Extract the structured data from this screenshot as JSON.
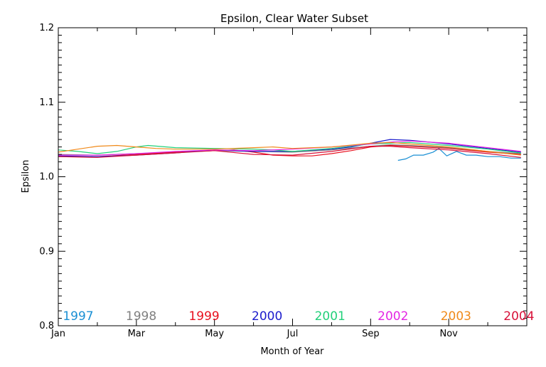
{
  "chart_data": {
    "type": "line",
    "title": "Epsilon, Clear Water Subset",
    "xlabel": "Month of Year",
    "ylabel": "Epsilon",
    "xlim": [
      1,
      13
    ],
    "ylim": [
      0.8,
      1.2
    ],
    "x_ticks": [
      {
        "value": 1,
        "label": "Jan"
      },
      {
        "value": 3,
        "label": "Mar"
      },
      {
        "value": 5,
        "label": "May"
      },
      {
        "value": 7,
        "label": "Jul"
      },
      {
        "value": 9,
        "label": "Sep"
      },
      {
        "value": 11,
        "label": "Nov"
      }
    ],
    "y_ticks": [
      {
        "value": 0.8,
        "label": "0.8"
      },
      {
        "value": 0.9,
        "label": "0.9"
      },
      {
        "value": 1.0,
        "label": "1.0"
      },
      {
        "value": 1.1,
        "label": "1.1"
      },
      {
        "value": 1.2,
        "label": "1.2"
      }
    ],
    "legend_placement": "bottom, inside plot",
    "series": [
      {
        "name": "1997",
        "color": "#1a8fd4",
        "x": [
          9.7,
          9.9,
          10.1,
          10.35,
          10.6,
          10.75,
          10.95,
          11.2,
          11.45,
          11.7,
          12.0,
          12.3,
          12.6,
          12.85
        ],
        "y": [
          1.022,
          1.024,
          1.029,
          1.029,
          1.033,
          1.038,
          1.028,
          1.034,
          1.029,
          1.029,
          1.027,
          1.027,
          1.025,
          1.025
        ]
      },
      {
        "name": "1998",
        "color": "#808080",
        "x": [
          1.0,
          2.0,
          3.0,
          4.0,
          5.0,
          6.0,
          7.0,
          8.0,
          9.0,
          9.5,
          10.0,
          11.0,
          12.0,
          12.85
        ],
        "y": [
          1.03,
          1.029,
          1.031,
          1.033,
          1.035,
          1.034,
          1.033,
          1.036,
          1.041,
          1.043,
          1.042,
          1.039,
          1.034,
          1.031
        ]
      },
      {
        "name": "1999",
        "color": "#e8101e",
        "x": [
          1.0,
          2.0,
          3.0,
          4.0,
          5.0,
          5.5,
          6.0,
          6.5,
          7.0,
          7.5,
          8.0,
          8.5,
          9.0,
          9.5,
          10.0,
          11.0,
          12.0,
          12.85
        ],
        "y": [
          1.027,
          1.027,
          1.03,
          1.033,
          1.035,
          1.036,
          1.033,
          1.029,
          1.028,
          1.028,
          1.031,
          1.035,
          1.04,
          1.042,
          1.041,
          1.038,
          1.033,
          1.03
        ]
      },
      {
        "name": "2000",
        "color": "#1c1ccc",
        "x": [
          1.0,
          2.0,
          3.0,
          4.0,
          5.0,
          6.0,
          7.0,
          8.0,
          8.5,
          9.0,
          9.5,
          10.0,
          11.0,
          12.0,
          12.85
        ],
        "y": [
          1.028,
          1.027,
          1.029,
          1.032,
          1.036,
          1.034,
          1.034,
          1.037,
          1.04,
          1.045,
          1.05,
          1.049,
          1.044,
          1.038,
          1.033
        ]
      },
      {
        "name": "2001",
        "color": "#22d07a",
        "x": [
          1.0,
          1.5,
          2.0,
          2.5,
          3.0,
          3.3,
          4.0,
          5.0,
          6.0,
          6.5,
          7.0,
          8.0,
          9.0,
          10.0,
          11.0,
          12.0,
          12.85
        ],
        "y": [
          1.036,
          1.034,
          1.031,
          1.034,
          1.04,
          1.042,
          1.039,
          1.038,
          1.037,
          1.036,
          1.034,
          1.038,
          1.044,
          1.046,
          1.042,
          1.037,
          1.032
        ]
      },
      {
        "name": "2002",
        "color": "#e426e4",
        "x": [
          1.0,
          2.0,
          3.0,
          4.0,
          5.0,
          6.0,
          7.0,
          8.0,
          9.0,
          9.6,
          10.0,
          11.0,
          12.0,
          12.85
        ],
        "y": [
          1.029,
          1.029,
          1.031,
          1.034,
          1.036,
          1.035,
          1.037,
          1.04,
          1.044,
          1.047,
          1.048,
          1.045,
          1.039,
          1.034
        ]
      },
      {
        "name": "2003",
        "color": "#f08a1a",
        "x": [
          1.0,
          1.5,
          2.0,
          2.5,
          3.0,
          3.5,
          4.0,
          5.0,
          6.0,
          6.5,
          7.0,
          8.0,
          9.0,
          9.5,
          10.0,
          11.0,
          12.0,
          12.85
        ],
        "y": [
          1.033,
          1.037,
          1.041,
          1.042,
          1.04,
          1.038,
          1.037,
          1.037,
          1.039,
          1.04,
          1.038,
          1.04,
          1.045,
          1.046,
          1.044,
          1.04,
          1.034,
          1.029
        ]
      },
      {
        "name": "2004",
        "color": "#d8123a",
        "x": [
          1.0,
          2.0,
          3.0,
          4.0,
          5.0,
          6.0,
          7.0,
          8.0,
          9.0,
          9.5,
          10.0,
          11.0,
          12.0,
          12.85
        ],
        "y": [
          1.027,
          1.026,
          1.029,
          1.032,
          1.035,
          1.03,
          1.029,
          1.034,
          1.041,
          1.041,
          1.039,
          1.036,
          1.031,
          1.026
        ]
      }
    ]
  }
}
